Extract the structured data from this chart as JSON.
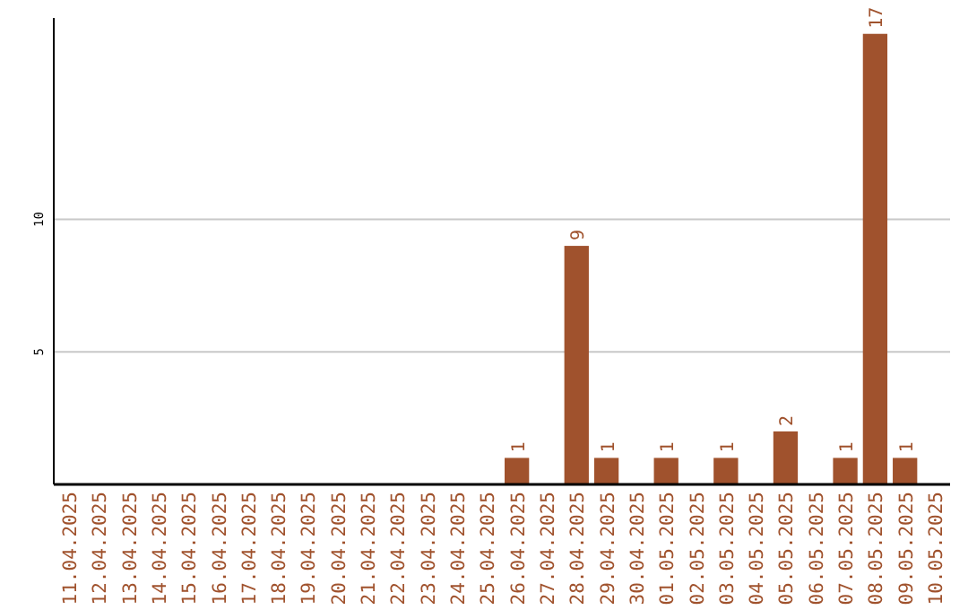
{
  "chart_data": {
    "type": "bar",
    "categories": [
      "11.04.2025",
      "12.04.2025",
      "13.04.2025",
      "14.04.2025",
      "15.04.2025",
      "16.04.2025",
      "17.04.2025",
      "18.04.2025",
      "19.04.2025",
      "20.04.2025",
      "21.04.2025",
      "22.04.2025",
      "23.04.2025",
      "24.04.2025",
      "25.04.2025",
      "26.04.2025",
      "27.04.2025",
      "28.04.2025",
      "29.04.2025",
      "30.04.2025",
      "01.05.2025",
      "02.05.2025",
      "03.05.2025",
      "04.05.2025",
      "05.05.2025",
      "06.05.2025",
      "07.05.2025",
      "08.05.2025",
      "09.05.2025",
      "10.05.2025"
    ],
    "values": [
      0,
      0,
      0,
      0,
      0,
      0,
      0,
      0,
      0,
      0,
      0,
      0,
      0,
      0,
      0,
      1,
      0,
      9,
      1,
      0,
      1,
      0,
      1,
      0,
      2,
      0,
      1,
      17,
      1,
      0
    ],
    "value_labels": [
      null,
      null,
      null,
      null,
      null,
      null,
      null,
      null,
      null,
      null,
      null,
      null,
      null,
      null,
      null,
      "1",
      null,
      "9",
      "1",
      null,
      "1",
      null,
      "1",
      null,
      "2",
      null,
      "1",
      "17",
      "1",
      null
    ],
    "color": "#a0522d",
    "ylim": [
      0,
      17.6
    ],
    "yticks": [
      5,
      10
    ],
    "grid": "y"
  }
}
